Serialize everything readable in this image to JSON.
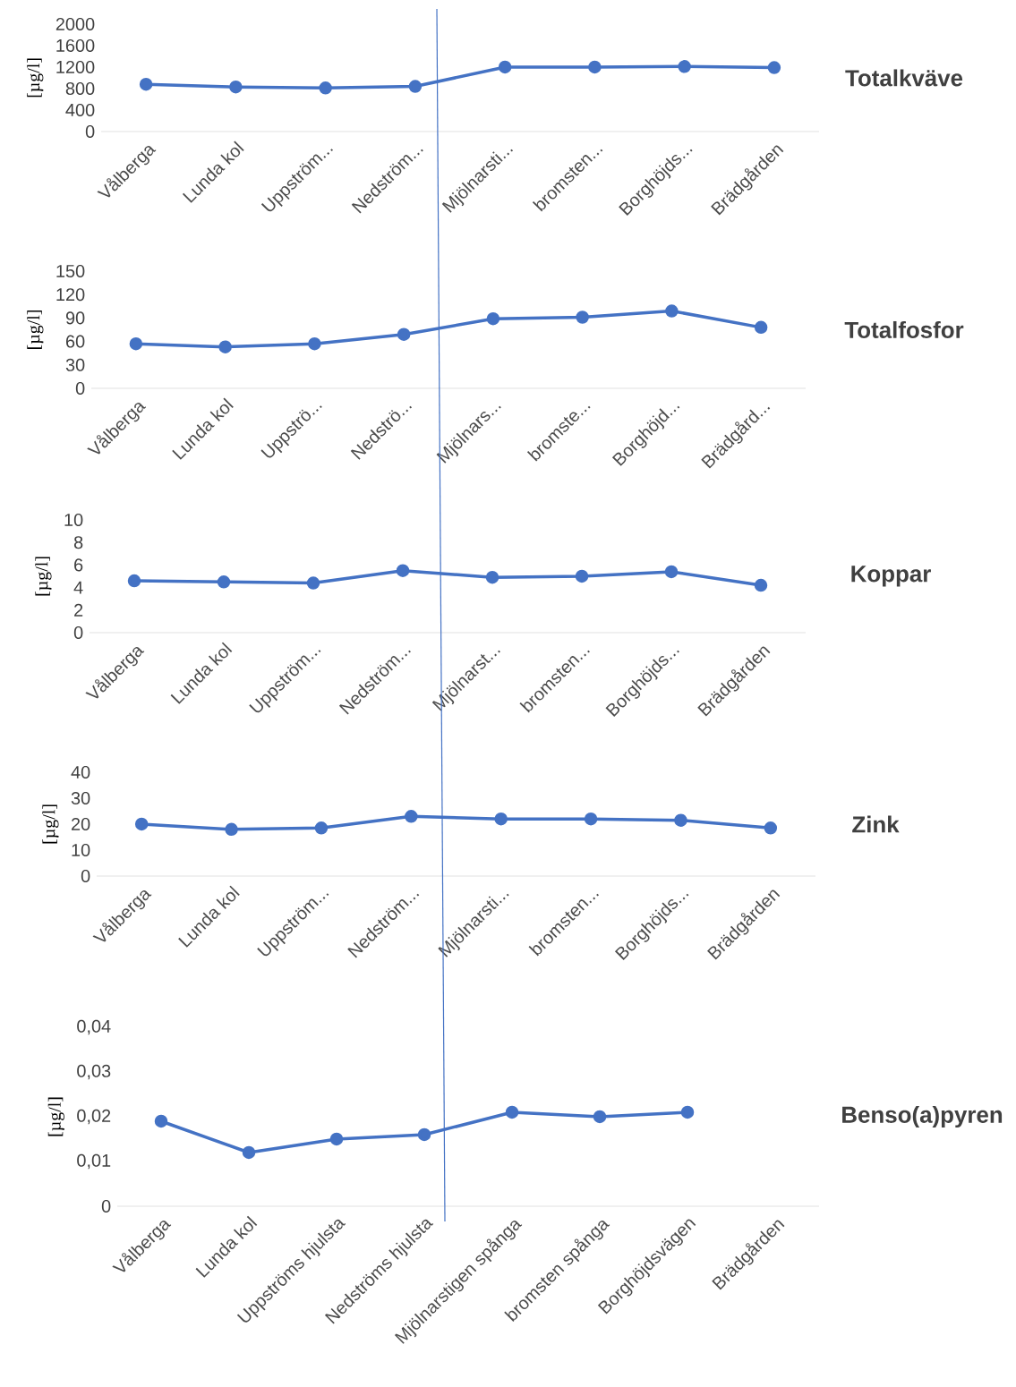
{
  "chart_data": [
    {
      "type": "line",
      "ylabel": "[µg/l]",
      "categories": [
        "Vålberga",
        "Lunda kol",
        "Uppström...",
        "Nedström...",
        "Mjölnarsti...",
        "bromsten...",
        "Borghöjds...",
        "Brädgården"
      ],
      "series": [
        {
          "name": "Totalkväve",
          "color": "#4472c4",
          "values": [
            880,
            830,
            810,
            840,
            1200,
            1200,
            1210,
            1190
          ]
        }
      ],
      "marker": "circle",
      "ylim": [
        0,
        2000
      ],
      "yticks": [
        0,
        400,
        800,
        1200,
        1600,
        2000
      ]
    },
    {
      "type": "line",
      "ylabel": "[µg/l]",
      "categories": [
        "Vålberga",
        "Lunda kol",
        "Uppströ...",
        "Nedströ...",
        "Mjölnars...",
        "bromste...",
        "Borghöjd...",
        "Brädgård..."
      ],
      "series": [
        {
          "name": "Totalfosfor",
          "color": "#4472c4",
          "values": [
            57,
            53,
            57,
            69,
            89,
            91,
            99,
            78
          ]
        }
      ],
      "marker": "circle",
      "ylim": [
        0,
        150
      ],
      "yticks": [
        0,
        30,
        60,
        90,
        120,
        150
      ]
    },
    {
      "type": "line",
      "ylabel": "[µg/l]",
      "categories": [
        "Vålberga",
        "Lunda kol",
        "Uppström...",
        "Nedström...",
        "Mjölnarst...",
        "bromsten...",
        "Borghöjds...",
        "Brädgården"
      ],
      "series": [
        {
          "name": "Koppar",
          "color": "#4472c4",
          "values": [
            4.6,
            4.5,
            4.4,
            5.5,
            4.9,
            5.0,
            5.4,
            4.2
          ]
        }
      ],
      "marker": "circle",
      "ylim": [
        0,
        10
      ],
      "yticks": [
        0,
        2,
        4,
        6,
        8,
        10
      ]
    },
    {
      "type": "line",
      "ylabel": "[µg/l]",
      "categories": [
        "Vålberga",
        "Lunda kol",
        "Uppström...",
        "Nedström...",
        "Mjölnarsti...",
        "bromsten...",
        "Borghöjds...",
        "Brädgården"
      ],
      "series": [
        {
          "name": "Zink",
          "color": "#4472c4",
          "values": [
            20,
            18,
            18.5,
            23,
            22,
            22,
            21.5,
            18.5
          ]
        }
      ],
      "marker": "circle",
      "ylim": [
        0,
        40
      ],
      "yticks": [
        0,
        10,
        20,
        30,
        40
      ]
    },
    {
      "type": "line",
      "ylabel": "[µg/l]",
      "categories": [
        "Vålberga",
        "Lunda kol",
        "Uppströms hjulsta",
        "Nedströms hjulsta",
        "Mjölnarstigen spånga",
        "bromsten spånga",
        "Borghöjdsvägen",
        "Brädgården"
      ],
      "series": [
        {
          "name": "Benso(a)pyren",
          "color": "#4472c4",
          "values": [
            0.019,
            0.012,
            0.015,
            0.016,
            0.021,
            0.02,
            0.021,
            null
          ]
        }
      ],
      "marker": "circle",
      "ylim": [
        0,
        0.04
      ],
      "yticks": [
        0,
        {
          "value": 0.01,
          "label": "0,01"
        },
        {
          "value": 0.02,
          "label": "0,02"
        },
        {
          "value": 0.03,
          "label": "0,03"
        },
        {
          "value": 0.04,
          "label": "0,04"
        }
      ]
    }
  ]
}
